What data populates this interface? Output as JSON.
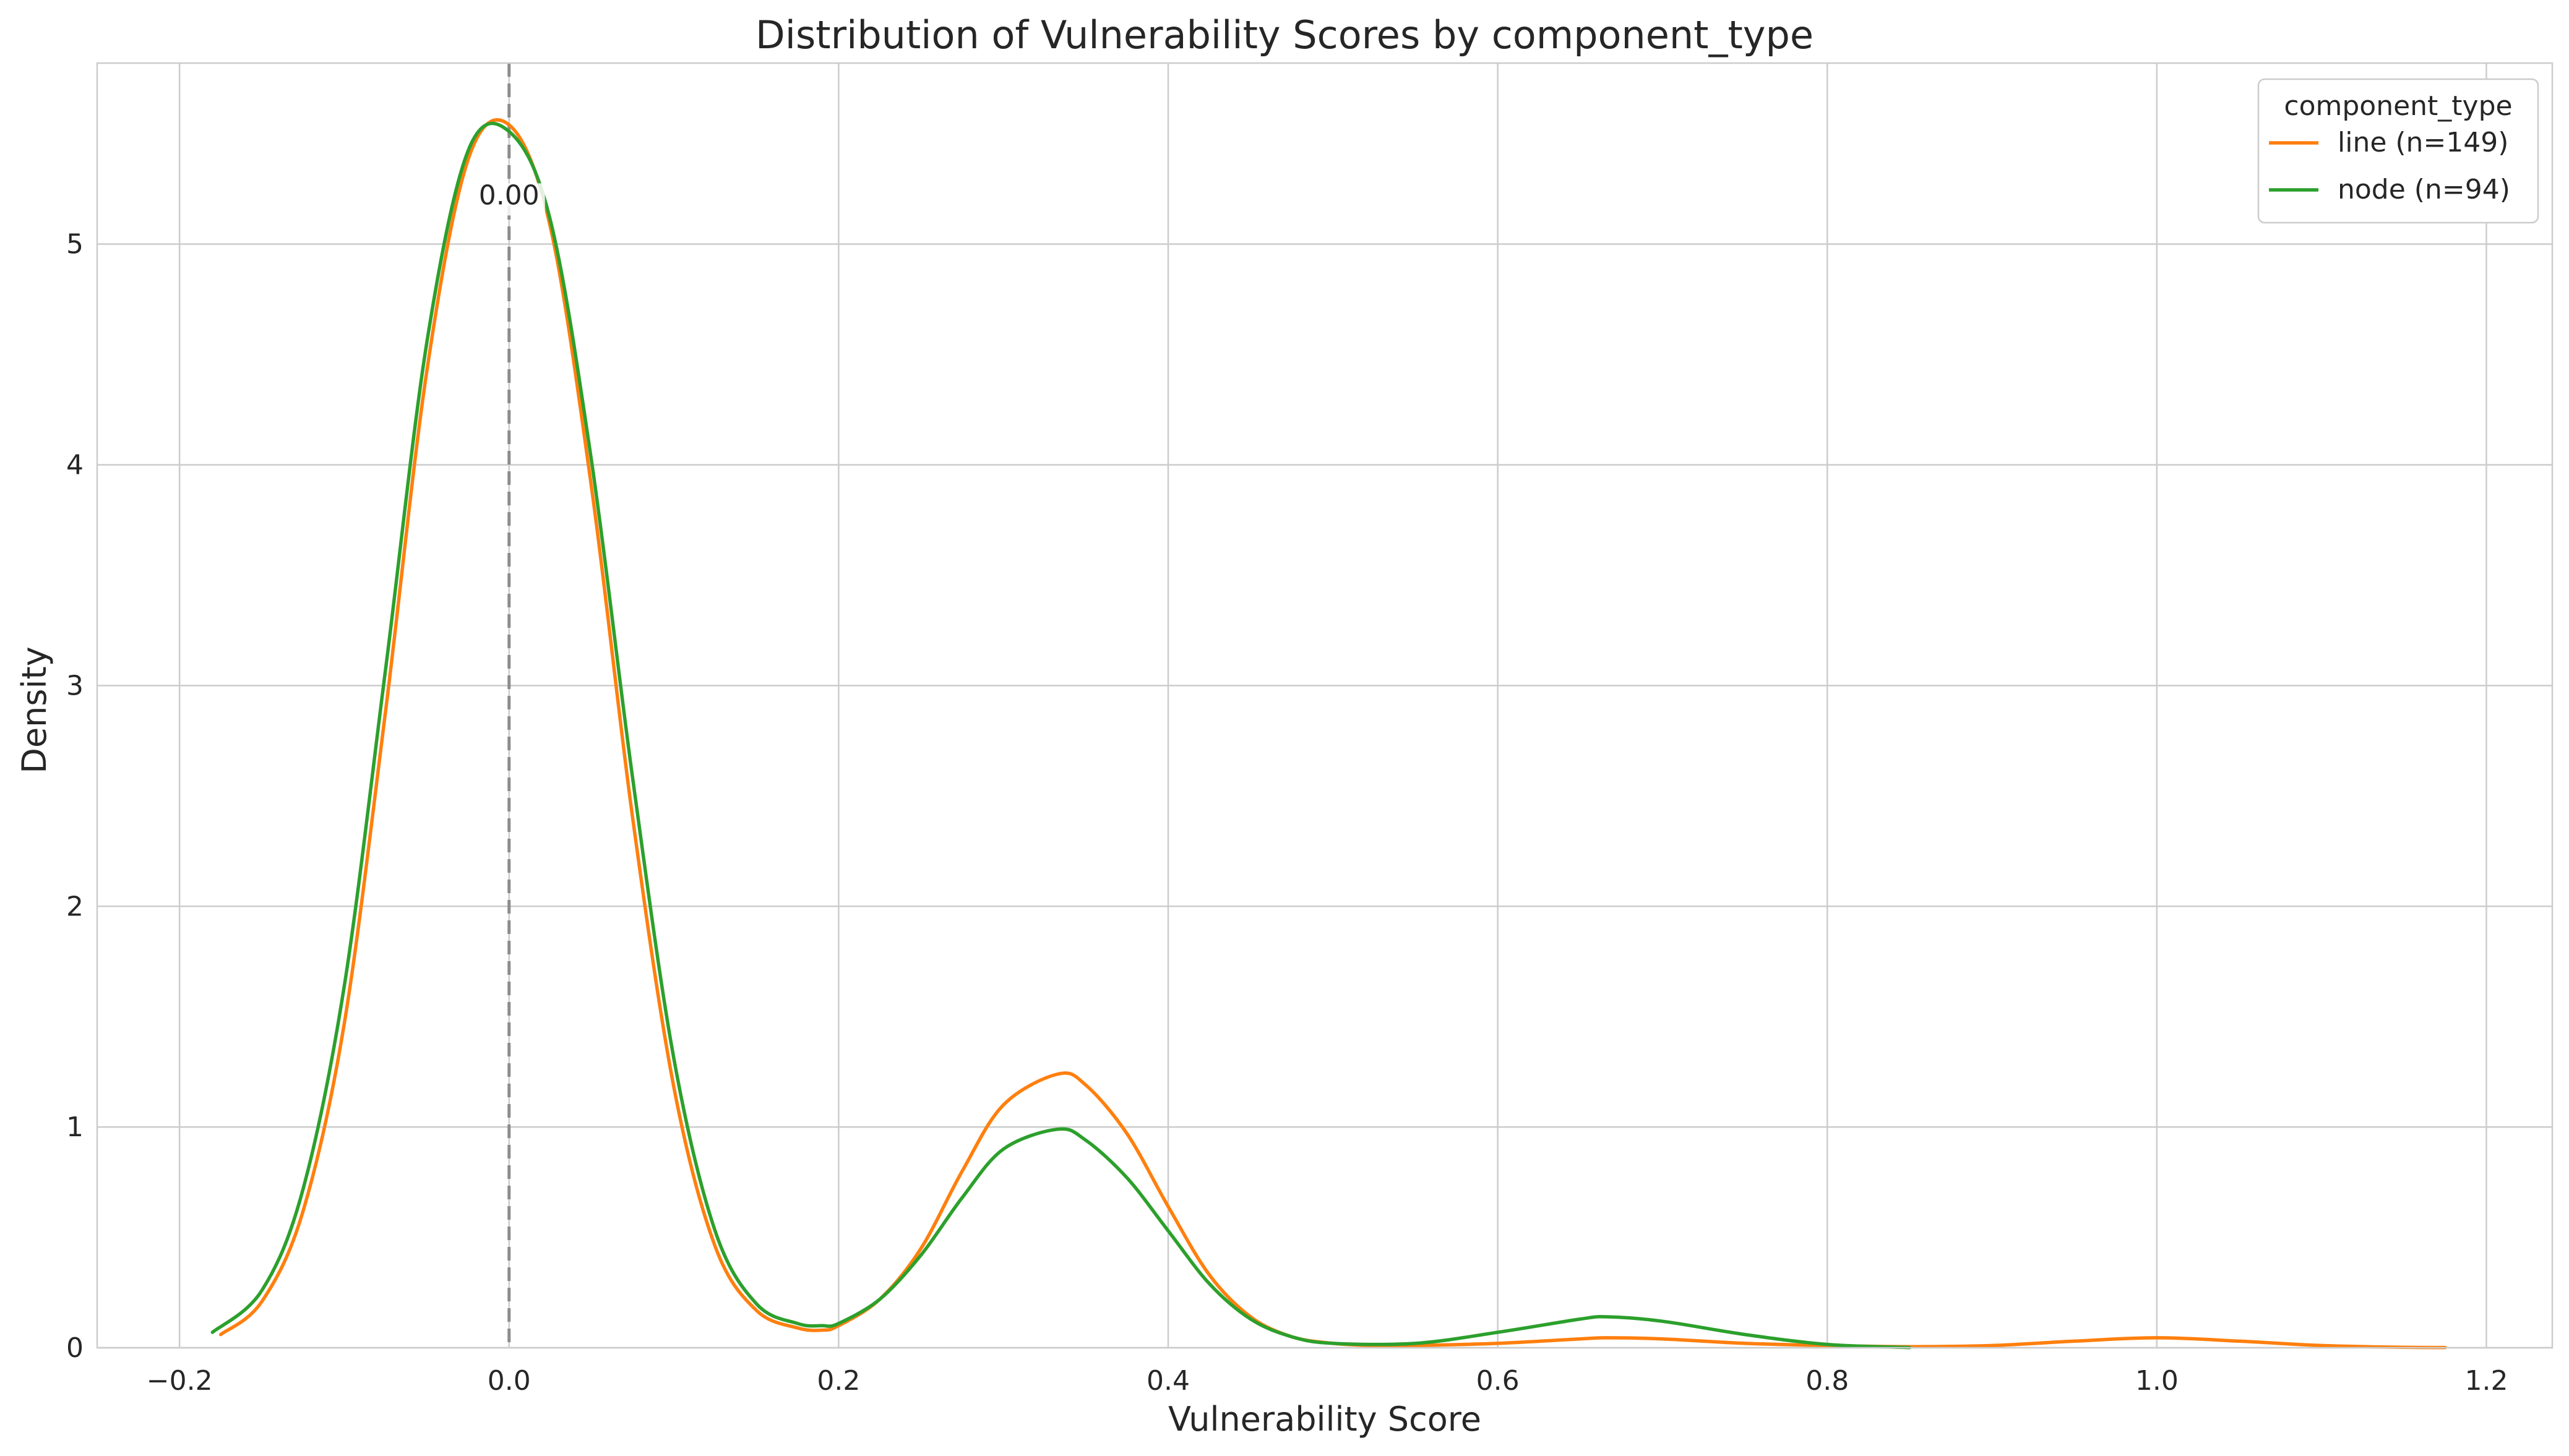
{
  "chart_data": {
    "type": "line",
    "title": "Distribution of Vulnerability Scores by component_type",
    "xlabel": "Vulnerability Score",
    "ylabel": "Density",
    "xlim": [
      -0.25,
      1.24
    ],
    "ylim": [
      0,
      5.82
    ],
    "x_ticks": [
      -0.2,
      0.0,
      0.2,
      0.4,
      0.6,
      0.8,
      1.0,
      1.2
    ],
    "x_tick_labels": [
      "−0.2",
      "0.0",
      "0.2",
      "0.4",
      "0.6",
      "0.8",
      "1.0",
      "1.2"
    ],
    "y_ticks": [
      0,
      1,
      2,
      3,
      4,
      5
    ],
    "y_tick_labels": [
      "0",
      "1",
      "2",
      "3",
      "4",
      "5"
    ],
    "grid": true,
    "legend": {
      "title": "component_type",
      "placement": "top-right"
    },
    "reference_line": {
      "x": 0.0,
      "style": "dashed",
      "color": "#8c8c8c"
    },
    "annotation": {
      "x": 0.0,
      "y": 5.18,
      "text": "0.00"
    },
    "series": [
      {
        "name": "line (n=149)",
        "color": "#ff7f0e",
        "x": [
          -0.175,
          -0.15,
          -0.125,
          -0.1,
          -0.075,
          -0.05,
          -0.025,
          0.0,
          0.025,
          0.05,
          0.075,
          0.1,
          0.125,
          0.15,
          0.175,
          0.19,
          0.2,
          0.225,
          0.25,
          0.275,
          0.3,
          0.333,
          0.35,
          0.375,
          0.4,
          0.425,
          0.45,
          0.475,
          0.5,
          0.525,
          0.55,
          0.6,
          0.65,
          0.667,
          0.7,
          0.75,
          0.8,
          0.85,
          0.9,
          0.95,
          1.0,
          1.05,
          1.1,
          1.15,
          1.175
        ],
        "y": [
          0.06,
          0.21,
          0.62,
          1.47,
          2.88,
          4.42,
          5.38,
          5.54,
          5.08,
          3.9,
          2.4,
          1.18,
          0.46,
          0.17,
          0.09,
          0.08,
          0.1,
          0.22,
          0.45,
          0.8,
          1.1,
          1.24,
          1.19,
          0.97,
          0.64,
          0.33,
          0.14,
          0.05,
          0.02,
          0.01,
          0.01,
          0.02,
          0.04,
          0.045,
          0.04,
          0.02,
          0.01,
          0.005,
          0.01,
          0.03,
          0.045,
          0.03,
          0.01,
          0.002,
          0.001
        ]
      },
      {
        "name": "node (n=94)",
        "color": "#2ca02c",
        "x": [
          -0.18,
          -0.15,
          -0.125,
          -0.1,
          -0.075,
          -0.05,
          -0.025,
          0.0,
          0.025,
          0.05,
          0.075,
          0.1,
          0.125,
          0.15,
          0.175,
          0.19,
          0.2,
          0.225,
          0.25,
          0.275,
          0.3,
          0.333,
          0.35,
          0.375,
          0.4,
          0.425,
          0.45,
          0.475,
          0.5,
          0.55,
          0.6,
          0.65,
          0.667,
          0.7,
          0.75,
          0.8,
          0.85
        ],
        "y": [
          0.07,
          0.26,
          0.72,
          1.64,
          3.07,
          4.55,
          5.42,
          5.51,
          5.11,
          4.02,
          2.58,
          1.31,
          0.53,
          0.2,
          0.11,
          0.1,
          0.11,
          0.22,
          0.42,
          0.68,
          0.9,
          0.99,
          0.94,
          0.77,
          0.53,
          0.29,
          0.13,
          0.05,
          0.02,
          0.02,
          0.07,
          0.13,
          0.14,
          0.12,
          0.06,
          0.015,
          0.001
        ]
      }
    ]
  }
}
